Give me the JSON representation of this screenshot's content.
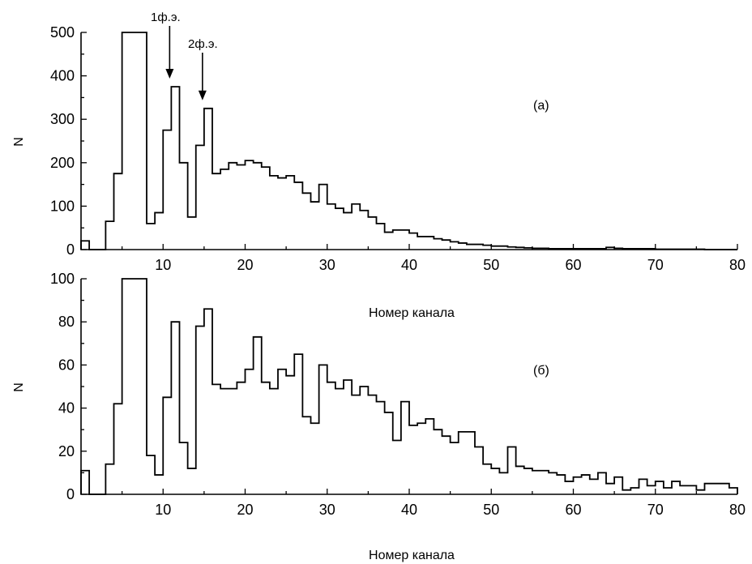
{
  "chart_data": [
    {
      "panel": "(a)",
      "type": "step",
      "ylabel": "N",
      "xlabel": "Номер канала",
      "xlim": [
        0,
        80
      ],
      "ylim": [
        0,
        500
      ],
      "xticks": [
        10,
        20,
        30,
        40,
        50,
        60,
        70,
        80
      ],
      "yticks": [
        0,
        100,
        200,
        300,
        400,
        500
      ],
      "bin_start": 0,
      "bin_width": 1,
      "values": [
        20,
        0,
        0,
        65,
        175,
        500,
        500,
        500,
        60,
        85,
        275,
        375,
        200,
        75,
        240,
        325,
        175,
        185,
        200,
        195,
        205,
        200,
        190,
        170,
        165,
        170,
        155,
        130,
        110,
        150,
        105,
        95,
        85,
        105,
        90,
        75,
        60,
        40,
        45,
        45,
        38,
        30,
        30,
        25,
        22,
        18,
        15,
        12,
        12,
        10,
        8,
        8,
        6,
        5,
        4,
        3,
        3,
        2,
        2,
        2,
        2,
        2,
        2,
        2,
        5,
        3,
        2,
        2,
        2,
        2,
        1,
        1,
        1,
        1,
        1,
        1,
        0,
        0,
        0,
        0
      ],
      "annotations": [
        {
          "text": "1ф.э.",
          "x": 10.8,
          "y": 375
        },
        {
          "text": "2ф.э.",
          "x": 14.8,
          "y": 325
        }
      ]
    },
    {
      "panel": "(б)",
      "type": "step",
      "ylabel": "N",
      "xlabel": "Номер канала",
      "xlim": [
        0,
        80
      ],
      "ylim": [
        0,
        100
      ],
      "xticks": [
        10,
        20,
        30,
        40,
        50,
        60,
        70,
        80
      ],
      "yticks": [
        0,
        20,
        40,
        60,
        80,
        100
      ],
      "bin_start": 0,
      "bin_width": 1,
      "values": [
        11,
        0,
        0,
        14,
        42,
        100,
        100,
        100,
        18,
        9,
        45,
        80,
        24,
        12,
        78,
        86,
        51,
        49,
        49,
        52,
        58,
        73,
        52,
        49,
        58,
        55,
        65,
        36,
        33,
        60,
        52,
        49,
        53,
        46,
        50,
        46,
        43,
        38,
        25,
        43,
        32,
        33,
        35,
        30,
        27,
        24,
        29,
        29,
        22,
        14,
        12,
        10,
        22,
        13,
        12,
        11,
        11,
        10,
        9,
        6,
        8,
        9,
        7,
        10,
        5,
        8,
        2,
        3,
        7,
        4,
        6,
        3,
        6,
        4,
        4,
        2,
        5,
        5,
        5,
        3
      ]
    }
  ]
}
